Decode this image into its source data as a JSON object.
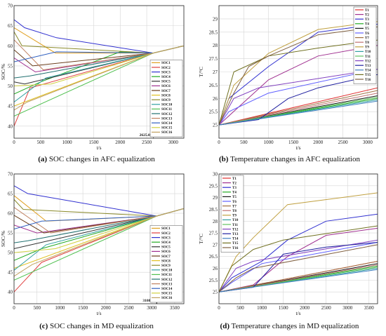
{
  "captions": [
    {
      "letter": "(a)",
      "text": " SOC changes in AFC equalization"
    },
    {
      "letter": "(b)",
      "text": " Temperature changes in AFC equalization"
    },
    {
      "letter": "(c)",
      "text": " SOC changes in MD equalization"
    },
    {
      "letter": "(d)",
      "text": " Temperature changes in MD equalization"
    }
  ],
  "chart_data": [
    {
      "type": "line",
      "xlabel": "t/s",
      "ylabel": "SOC/%",
      "xlim": [
        0,
        3200
      ],
      "ylim": [
        37,
        70
      ],
      "xticks": [
        0,
        500,
        1000,
        1500,
        2000,
        2500,
        3000
      ],
      "yticks": [
        40,
        45,
        50,
        55,
        60,
        65,
        70
      ],
      "grid": true,
      "legend_position": "bottom-right",
      "annotation": {
        "text": "2625.05",
        "x": 2625
      },
      "series": [
        {
          "name": "SOC1",
          "color": "#e0a020",
          "x": [
            0,
            780,
            2625,
            3200
          ],
          "y": [
            64.5,
            58.2,
            58.2,
            60.0
          ]
        },
        {
          "name": "SOC2",
          "color": "#e04040",
          "x": [
            0,
            300,
            2625,
            3200
          ],
          "y": [
            40.0,
            49.5,
            58.2,
            60.0
          ]
        },
        {
          "name": "SOC3",
          "color": "#3030d0",
          "x": [
            0,
            200,
            800,
            2625,
            3200
          ],
          "y": [
            66.5,
            64.5,
            62.0,
            58.2,
            60.0
          ]
        },
        {
          "name": "SOC4",
          "color": "#22aa22",
          "x": [
            0,
            500,
            2000,
            2625,
            3200
          ],
          "y": [
            48.0,
            51.0,
            58.5,
            58.2,
            60.0
          ]
        },
        {
          "name": "SOC5",
          "color": "#303030",
          "x": [
            0,
            200,
            2625,
            3200
          ],
          "y": [
            51.0,
            50.5,
            58.2,
            60.0
          ]
        },
        {
          "name": "SOC6",
          "color": "#a03090",
          "x": [
            0,
            400,
            2625,
            3200
          ],
          "y": [
            57.0,
            53.5,
            58.2,
            60.0
          ]
        },
        {
          "name": "SOC7",
          "color": "#6a3d1a",
          "x": [
            0,
            350,
            2625,
            3200
          ],
          "y": [
            59.0,
            55.0,
            58.2,
            60.0
          ]
        },
        {
          "name": "SOC8",
          "color": "#e0c020",
          "x": [
            0,
            2625,
            3200
          ],
          "y": [
            45.0,
            58.2,
            60.0
          ]
        },
        {
          "name": "SOC9",
          "color": "#8a8a2a",
          "x": [
            0,
            150,
            2625,
            3200
          ],
          "y": [
            63.5,
            60.0,
            58.2,
            60.0
          ]
        },
        {
          "name": "SOC10",
          "color": "#30a0a0",
          "x": [
            0,
            600,
            2625,
            3200
          ],
          "y": [
            46.0,
            52.0,
            58.2,
            60.0
          ]
        },
        {
          "name": "SOC11",
          "color": "#50c050",
          "x": [
            0,
            2625,
            3200
          ],
          "y": [
            42.5,
            58.2,
            60.0
          ]
        },
        {
          "name": "SOC12",
          "color": "#207070",
          "x": [
            0,
            300,
            2625,
            3200
          ],
          "y": [
            52.0,
            52.5,
            58.2,
            60.0
          ]
        },
        {
          "name": "SOC13",
          "color": "#c08060",
          "x": [
            0,
            550,
            2625,
            3200
          ],
          "y": [
            61.5,
            54.0,
            58.2,
            60.0
          ]
        },
        {
          "name": "SOC14",
          "color": "#3060c0",
          "x": [
            0,
            800,
            2625,
            3200
          ],
          "y": [
            56.0,
            58.5,
            58.2,
            60.0
          ]
        },
        {
          "name": "SOC15",
          "color": "#d0d040",
          "x": [
            0,
            700,
            2625,
            3200
          ],
          "y": [
            50.0,
            50.5,
            58.2,
            60.0
          ]
        },
        {
          "name": "SOC16",
          "color": "#c0a060",
          "x": [
            0,
            250,
            2625,
            3200
          ],
          "y": [
            44.0,
            46.0,
            58.2,
            60.0
          ]
        }
      ]
    },
    {
      "type": "line",
      "xlabel": "t/s",
      "ylabel": "T/°C",
      "xlim": [
        0,
        3200
      ],
      "ylim": [
        24.5,
        29.5
      ],
      "xticks": [
        0,
        500,
        1000,
        1500,
        2000,
        2500,
        3000
      ],
      "yticks": [
        25,
        25.5,
        26,
        26.5,
        27,
        27.5,
        28,
        28.5,
        29
      ],
      "grid": true,
      "legend_position": "top-right",
      "series": [
        {
          "name": "T1",
          "color": "#e03030",
          "x": [
            0,
            3200
          ],
          "y": [
            25.0,
            26.4
          ]
        },
        {
          "name": "T2",
          "color": "#a03090",
          "x": [
            0,
            1000,
            2000,
            3200
          ],
          "y": [
            25.0,
            26.7,
            27.6,
            28.0
          ]
        },
        {
          "name": "T3",
          "color": "#3030d0",
          "x": [
            0,
            200,
            1000,
            2000,
            3200
          ],
          "y": [
            25.0,
            26.0,
            27.2,
            28.5,
            28.8
          ]
        },
        {
          "name": "T4",
          "color": "#22aa22",
          "x": [
            0,
            3200
          ],
          "y": [
            25.0,
            26.0
          ]
        },
        {
          "name": "T5",
          "color": "#1a1a1a",
          "x": [
            0,
            3200
          ],
          "y": [
            25.0,
            26.1
          ]
        },
        {
          "name": "T6",
          "color": "#6060ff",
          "x": [
            0,
            200,
            1000,
            3200
          ],
          "y": [
            25.0,
            25.5,
            26.2,
            27.1
          ]
        },
        {
          "name": "T7",
          "color": "#a07040",
          "x": [
            0,
            3200
          ],
          "y": [
            25.0,
            26.3
          ]
        },
        {
          "name": "T8",
          "color": "#c07070",
          "x": [
            0,
            3200
          ],
          "y": [
            25.0,
            26.2
          ]
        },
        {
          "name": "T9",
          "color": "#c0a040",
          "x": [
            0,
            300,
            1000,
            2000,
            3200
          ],
          "y": [
            25.0,
            26.5,
            27.7,
            28.6,
            28.9
          ]
        },
        {
          "name": "T10",
          "color": "#30a0a0",
          "x": [
            0,
            3200
          ],
          "y": [
            25.0,
            25.95
          ]
        },
        {
          "name": "T11",
          "color": "#60c060",
          "x": [
            0,
            3200
          ],
          "y": [
            25.0,
            26.05
          ]
        },
        {
          "name": "T12",
          "color": "#8040c0",
          "x": [
            0,
            300,
            800,
            3200
          ],
          "y": [
            25.0,
            26.0,
            26.4,
            27.1
          ]
        },
        {
          "name": "T13",
          "color": "#2020a0",
          "x": [
            0,
            800,
            1400,
            2000,
            3200
          ],
          "y": [
            25.0,
            25.2,
            26.0,
            26.4,
            26.9
          ]
        },
        {
          "name": "T14",
          "color": "#4080c0",
          "x": [
            0,
            3200
          ],
          "y": [
            25.0,
            25.9
          ]
        },
        {
          "name": "T15",
          "color": "#707020",
          "x": [
            0,
            300,
            1000,
            2000,
            3200
          ],
          "y": [
            25.0,
            27.0,
            27.6,
            27.9,
            28.2
          ]
        },
        {
          "name": "T16",
          "color": "#806040",
          "x": [
            0,
            300,
            600,
            1000,
            2000,
            3200
          ],
          "y": [
            25.0,
            26.2,
            27.2,
            27.6,
            28.4,
            28.7
          ]
        }
      ]
    },
    {
      "type": "line",
      "xlabel": "t/s",
      "ylabel": "SOC/%",
      "xlim": [
        0,
        3700
      ],
      "ylim": [
        37,
        70
      ],
      "xticks": [
        0,
        500,
        1000,
        1500,
        2000,
        2500,
        3000,
        3500
      ],
      "yticks": [
        40,
        45,
        50,
        55,
        60,
        65,
        70
      ],
      "grid": true,
      "legend_position": "bottom-right",
      "annotation": {
        "text": "3108.80",
        "x": 3108
      },
      "series": [
        {
          "name": "SOC1",
          "color": "#e0a020",
          "x": [
            0,
            700,
            3108,
            3700
          ],
          "y": [
            64.5,
            58.0,
            59.3,
            61.2
          ]
        },
        {
          "name": "SOC2",
          "color": "#e04040",
          "x": [
            0,
            600,
            3108,
            3700
          ],
          "y": [
            40.0,
            47.5,
            59.3,
            61.2
          ]
        },
        {
          "name": "SOC3",
          "color": "#3030d0",
          "x": [
            0,
            300,
            3108,
            3700
          ],
          "y": [
            67.0,
            65.0,
            59.3,
            61.2
          ]
        },
        {
          "name": "SOC4",
          "color": "#22aa22",
          "x": [
            0,
            600,
            3108,
            3700
          ],
          "y": [
            48.0,
            51.0,
            59.3,
            61.2
          ]
        },
        {
          "name": "SOC5",
          "color": "#303030",
          "x": [
            0,
            3108,
            3700
          ],
          "y": [
            51.0,
            59.3,
            61.2
          ]
        },
        {
          "name": "SOC6",
          "color": "#a03090",
          "x": [
            0,
            500,
            3108,
            3700
          ],
          "y": [
            57.0,
            55.0,
            59.3,
            61.2
          ]
        },
        {
          "name": "SOC7",
          "color": "#6a3d1a",
          "x": [
            0,
            650,
            3108,
            3700
          ],
          "y": [
            59.5,
            55.0,
            59.3,
            61.2
          ]
        },
        {
          "name": "SOC8",
          "color": "#e0c020",
          "x": [
            0,
            3108,
            3700
          ],
          "y": [
            46.0,
            59.3,
            61.2
          ]
        },
        {
          "name": "SOC9",
          "color": "#8a8a2a",
          "x": [
            0,
            200,
            3108,
            3700
          ],
          "y": [
            63.5,
            61.0,
            59.3,
            61.2
          ]
        },
        {
          "name": "SOC10",
          "color": "#30a0a0",
          "x": [
            0,
            700,
            3108,
            3700
          ],
          "y": [
            45.5,
            52.0,
            59.3,
            61.2
          ]
        },
        {
          "name": "SOC11",
          "color": "#50c050",
          "x": [
            0,
            3108,
            3700
          ],
          "y": [
            43.0,
            59.3,
            61.2
          ]
        },
        {
          "name": "SOC12",
          "color": "#207070",
          "x": [
            0,
            300,
            3108,
            3700
          ],
          "y": [
            52.5,
            53.0,
            59.3,
            61.2
          ]
        },
        {
          "name": "SOC13",
          "color": "#c08060",
          "x": [
            0,
            800,
            3108,
            3700
          ],
          "y": [
            61.5,
            55.0,
            59.3,
            61.2
          ]
        },
        {
          "name": "SOC14",
          "color": "#3060c0",
          "x": [
            0,
            600,
            3108,
            3700
          ],
          "y": [
            56.0,
            58.0,
            59.3,
            61.2
          ]
        },
        {
          "name": "SOC15",
          "color": "#d0d040",
          "x": [
            0,
            900,
            3108,
            3700
          ],
          "y": [
            50.0,
            51.0,
            59.3,
            61.2
          ]
        },
        {
          "name": "SOC16",
          "color": "#c0a060",
          "x": [
            0,
            400,
            3108,
            3700
          ],
          "y": [
            44.0,
            47.0,
            59.3,
            61.2
          ]
        }
      ]
    },
    {
      "type": "line",
      "xlabel": "t/s",
      "ylabel": "T/°C",
      "xlim": [
        0,
        3700
      ],
      "ylim": [
        24.5,
        30.0
      ],
      "xticks": [
        0,
        500,
        1000,
        1500,
        2000,
        2500,
        3000,
        3500
      ],
      "yticks": [
        25,
        25.5,
        26,
        26.5,
        27,
        27.5,
        28,
        28.5,
        29,
        29.5,
        30
      ],
      "grid": true,
      "legend_position": "top-left",
      "series": [
        {
          "name": "T1",
          "color": "#e03030",
          "x": [
            0,
            3700
          ],
          "y": [
            25.0,
            26.3
          ]
        },
        {
          "name": "T2",
          "color": "#a03090",
          "x": [
            0,
            800,
            1600,
            2500,
            3700
          ],
          "y": [
            25.0,
            25.3,
            26.5,
            27.4,
            27.7
          ]
        },
        {
          "name": "T3",
          "color": "#3030d0",
          "x": [
            0,
            300,
            1000,
            1600,
            2500,
            3700
          ],
          "y": [
            25.0,
            25.6,
            26.3,
            27.2,
            28.0,
            28.3
          ]
        },
        {
          "name": "T4",
          "color": "#22aa22",
          "x": [
            0,
            3700
          ],
          "y": [
            25.0,
            26.1
          ]
        },
        {
          "name": "T5",
          "color": "#1a1a1a",
          "x": [
            0,
            3700
          ],
          "y": [
            25.0,
            26.2
          ]
        },
        {
          "name": "T6",
          "color": "#6060ff",
          "x": [
            0,
            300,
            1000,
            3700
          ],
          "y": [
            25.0,
            25.4,
            26.2,
            27.1
          ]
        },
        {
          "name": "T7",
          "color": "#a07040",
          "x": [
            0,
            3700
          ],
          "y": [
            25.0,
            26.3
          ]
        },
        {
          "name": "T8",
          "color": "#c07070",
          "x": [
            0,
            3700
          ],
          "y": [
            25.0,
            26.15
          ]
        },
        {
          "name": "T9",
          "color": "#c0a040",
          "x": [
            0,
            400,
            800,
            1600,
            3700
          ],
          "y": [
            25.0,
            26.5,
            27.3,
            28.7,
            29.2
          ]
        },
        {
          "name": "T10",
          "color": "#30a0a0",
          "x": [
            0,
            3700
          ],
          "y": [
            25.0,
            26.0
          ]
        },
        {
          "name": "T11",
          "color": "#60c060",
          "x": [
            0,
            3700
          ],
          "y": [
            25.0,
            26.05
          ]
        },
        {
          "name": "T12",
          "color": "#8040c0",
          "x": [
            0,
            400,
            800,
            3700
          ],
          "y": [
            25.0,
            26.0,
            26.3,
            27.2
          ]
        },
        {
          "name": "T13",
          "color": "#2020a0",
          "x": [
            0,
            800,
            1500,
            2500,
            3700
          ],
          "y": [
            25.0,
            25.2,
            26.6,
            26.9,
            27.1
          ]
        },
        {
          "name": "T14",
          "color": "#4080c0",
          "x": [
            0,
            3700
          ],
          "y": [
            25.0,
            25.95
          ]
        },
        {
          "name": "T15",
          "color": "#707020",
          "x": [
            0,
            300,
            800,
            1500,
            3700
          ],
          "y": [
            25.0,
            26.1,
            26.8,
            27.2,
            27.8
          ]
        },
        {
          "name": "T16",
          "color": "#806040",
          "x": [
            0,
            400,
            800,
            3700
          ],
          "y": [
            25.0,
            25.6,
            26.0,
            27.0
          ]
        }
      ]
    }
  ]
}
